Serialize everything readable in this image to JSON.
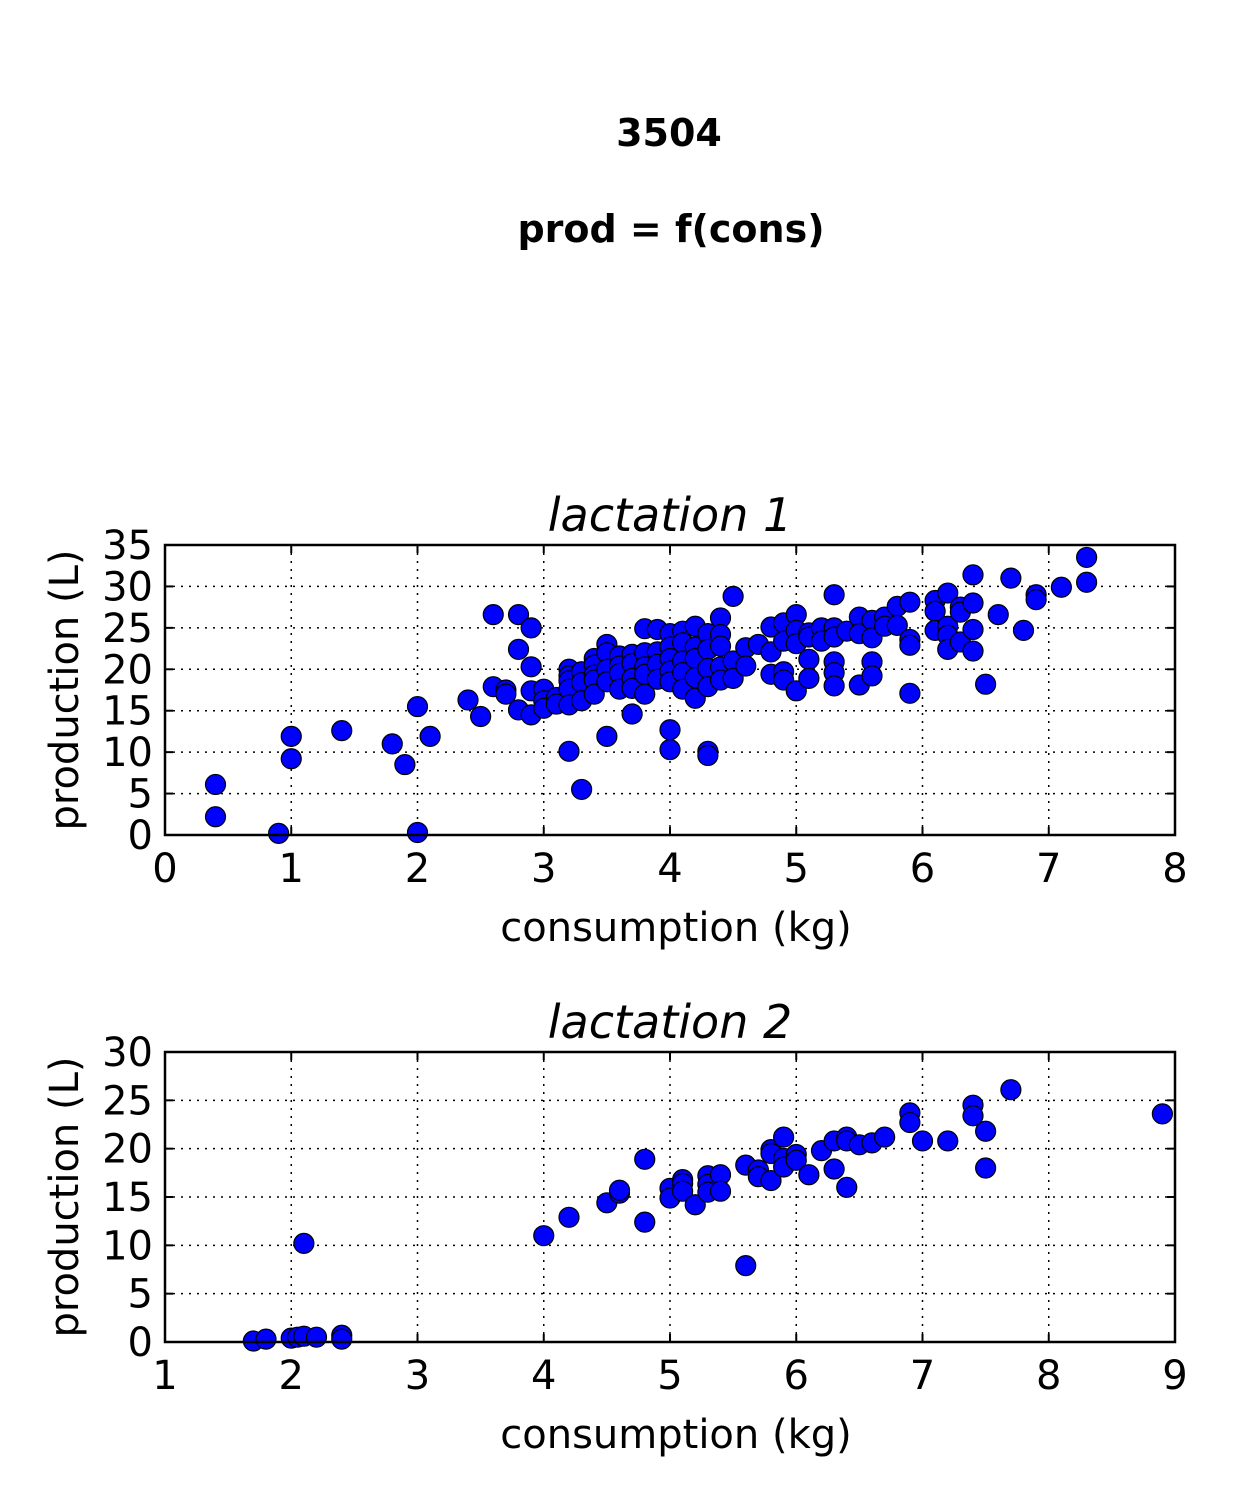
{
  "figure": {
    "suptitle_line1": "3504",
    "suptitle_line2": "prod = f(cons)",
    "marker_color": "#0000ff"
  },
  "chart_data": [
    {
      "type": "scatter",
      "title": "lactation 1",
      "xlabel": "consumption (kg)",
      "ylabel": "production (L)",
      "xlim": [
        0,
        8
      ],
      "ylim": [
        0,
        35
      ],
      "xticks": [
        "0",
        "1",
        "2",
        "3",
        "4",
        "5",
        "6",
        "7",
        "8"
      ],
      "yticks": [
        "0",
        "5",
        "10",
        "15",
        "20",
        "25",
        "30",
        "35"
      ],
      "grid": true,
      "points": [
        [
          0.4,
          6.1
        ],
        [
          0.4,
          2.2
        ],
        [
          0.9,
          0.2
        ],
        [
          1.0,
          11.9
        ],
        [
          1.0,
          9.2
        ],
        [
          1.4,
          12.6
        ],
        [
          1.8,
          11.0
        ],
        [
          1.9,
          8.5
        ],
        [
          2.0,
          15.5
        ],
        [
          2.0,
          0.3
        ],
        [
          2.1,
          11.9
        ],
        [
          2.4,
          16.3
        ],
        [
          2.5,
          14.3
        ],
        [
          2.6,
          26.6
        ],
        [
          2.6,
          17.9
        ],
        [
          2.7,
          17.5
        ],
        [
          2.7,
          17.0
        ],
        [
          2.8,
          26.6
        ],
        [
          2.8,
          22.4
        ],
        [
          2.8,
          15.1
        ],
        [
          2.9,
          25.0
        ],
        [
          2.9,
          20.3
        ],
        [
          2.9,
          17.4
        ],
        [
          2.9,
          14.5
        ],
        [
          3.0,
          17.6
        ],
        [
          3.0,
          16.2
        ],
        [
          3.0,
          15.3
        ],
        [
          3.1,
          16.6
        ],
        [
          3.1,
          15.8
        ],
        [
          3.2,
          20.0
        ],
        [
          3.2,
          19.2
        ],
        [
          3.2,
          18.6
        ],
        [
          3.2,
          17.6
        ],
        [
          3.2,
          15.7
        ],
        [
          3.2,
          10.1
        ],
        [
          3.3,
          19.7
        ],
        [
          3.3,
          18.4
        ],
        [
          3.3,
          16.2
        ],
        [
          3.3,
          5.5
        ],
        [
          3.4,
          21.3
        ],
        [
          3.4,
          20.5
        ],
        [
          3.4,
          19.3
        ],
        [
          3.4,
          18.7
        ],
        [
          3.4,
          17.0
        ],
        [
          3.5,
          23.0
        ],
        [
          3.5,
          22.0
        ],
        [
          3.5,
          20.0
        ],
        [
          3.5,
          18.5
        ],
        [
          3.5,
          11.9
        ],
        [
          3.6,
          21.6
        ],
        [
          3.6,
          20.4
        ],
        [
          3.6,
          19.5
        ],
        [
          3.6,
          17.6
        ],
        [
          3.7,
          21.8
        ],
        [
          3.7,
          20.7
        ],
        [
          3.7,
          18.9
        ],
        [
          3.7,
          17.7
        ],
        [
          3.7,
          14.6
        ],
        [
          3.8,
          24.9
        ],
        [
          3.8,
          22.0
        ],
        [
          3.8,
          20.3
        ],
        [
          3.8,
          19.4
        ],
        [
          3.8,
          17.0
        ],
        [
          3.9,
          24.8
        ],
        [
          3.9,
          22.1
        ],
        [
          3.9,
          20.6
        ],
        [
          3.9,
          18.8
        ],
        [
          4.0,
          24.3
        ],
        [
          4.0,
          22.7
        ],
        [
          4.0,
          21.3
        ],
        [
          4.0,
          19.8
        ],
        [
          4.0,
          18.5
        ],
        [
          4.0,
          12.7
        ],
        [
          4.0,
          10.3
        ],
        [
          4.1,
          24.6
        ],
        [
          4.1,
          23.2
        ],
        [
          4.1,
          21.0
        ],
        [
          4.1,
          19.6
        ],
        [
          4.1,
          17.6
        ],
        [
          4.2,
          25.2
        ],
        [
          4.2,
          22.7
        ],
        [
          4.2,
          21.3
        ],
        [
          4.2,
          19.0
        ],
        [
          4.2,
          16.5
        ],
        [
          4.3,
          24.3
        ],
        [
          4.3,
          22.4
        ],
        [
          4.3,
          20.1
        ],
        [
          4.3,
          17.9
        ],
        [
          4.3,
          10.1
        ],
        [
          4.3,
          9.6
        ],
        [
          4.4,
          26.2
        ],
        [
          4.4,
          24.2
        ],
        [
          4.4,
          22.8
        ],
        [
          4.4,
          20.3
        ],
        [
          4.4,
          18.7
        ],
        [
          4.5,
          28.8
        ],
        [
          4.5,
          21.0
        ],
        [
          4.5,
          18.9
        ],
        [
          4.6,
          22.6
        ],
        [
          4.6,
          20.4
        ],
        [
          4.7,
          23.0
        ],
        [
          4.8,
          25.1
        ],
        [
          4.8,
          22.1
        ],
        [
          4.8,
          19.4
        ],
        [
          4.9,
          25.6
        ],
        [
          4.9,
          23.4
        ],
        [
          4.9,
          19.7
        ],
        [
          4.9,
          18.7
        ],
        [
          5.0,
          26.6
        ],
        [
          5.0,
          24.7
        ],
        [
          5.0,
          23.1
        ],
        [
          5.0,
          17.4
        ],
        [
          5.1,
          24.4
        ],
        [
          5.1,
          23.9
        ],
        [
          5.1,
          21.2
        ],
        [
          5.1,
          18.9
        ],
        [
          5.2,
          25.0
        ],
        [
          5.2,
          23.4
        ],
        [
          5.3,
          29.0
        ],
        [
          5.3,
          25.0
        ],
        [
          5.3,
          23.9
        ],
        [
          5.3,
          20.9
        ],
        [
          5.3,
          19.6
        ],
        [
          5.3,
          18.0
        ],
        [
          5.4,
          24.6
        ],
        [
          5.5,
          26.3
        ],
        [
          5.5,
          24.3
        ],
        [
          5.5,
          18.1
        ],
        [
          5.6,
          25.9
        ],
        [
          5.6,
          23.8
        ],
        [
          5.6,
          20.9
        ],
        [
          5.6,
          19.2
        ],
        [
          5.7,
          26.3
        ],
        [
          5.7,
          25.2
        ],
        [
          5.8,
          27.6
        ],
        [
          5.8,
          25.3
        ],
        [
          5.9,
          28.1
        ],
        [
          5.9,
          23.6
        ],
        [
          5.9,
          22.9
        ],
        [
          5.9,
          17.1
        ],
        [
          6.1,
          28.3
        ],
        [
          6.1,
          27.0
        ],
        [
          6.1,
          24.7
        ],
        [
          6.2,
          29.2
        ],
        [
          6.2,
          25.2
        ],
        [
          6.2,
          24.1
        ],
        [
          6.2,
          22.4
        ],
        [
          6.3,
          27.5
        ],
        [
          6.3,
          26.9
        ],
        [
          6.3,
          23.3
        ],
        [
          6.4,
          31.4
        ],
        [
          6.4,
          28.0
        ],
        [
          6.4,
          24.8
        ],
        [
          6.4,
          22.2
        ],
        [
          6.5,
          18.2
        ],
        [
          6.6,
          26.6
        ],
        [
          6.7,
          31.0
        ],
        [
          6.8,
          24.7
        ],
        [
          6.9,
          29.0
        ],
        [
          6.9,
          28.4
        ],
        [
          7.1,
          29.9
        ],
        [
          7.3,
          33.5
        ],
        [
          7.3,
          30.5
        ]
      ]
    },
    {
      "type": "scatter",
      "title": "lactation 2",
      "xlabel": "consumption (kg)",
      "ylabel": "production (L)",
      "xlim": [
        1,
        9
      ],
      "ylim": [
        0,
        30
      ],
      "xticks": [
        "1",
        "2",
        "3",
        "4",
        "5",
        "6",
        "7",
        "8",
        "9"
      ],
      "yticks": [
        "0",
        "5",
        "10",
        "15",
        "20",
        "25",
        "30"
      ],
      "grid": true,
      "points": [
        [
          1.7,
          0.1
        ],
        [
          1.8,
          0.3
        ],
        [
          2.0,
          0.4
        ],
        [
          2.05,
          0.5
        ],
        [
          2.1,
          0.6
        ],
        [
          2.2,
          0.5
        ],
        [
          2.4,
          0.7
        ],
        [
          2.4,
          0.3
        ],
        [
          2.1,
          10.2
        ],
        [
          4.0,
          11.0
        ],
        [
          4.2,
          12.9
        ],
        [
          4.5,
          14.4
        ],
        [
          4.6,
          15.4
        ],
        [
          4.6,
          15.7
        ],
        [
          4.8,
          18.9
        ],
        [
          4.8,
          12.4
        ],
        [
          5.0,
          15.9
        ],
        [
          5.0,
          14.9
        ],
        [
          5.1,
          16.8
        ],
        [
          5.1,
          16.4
        ],
        [
          5.1,
          15.6
        ],
        [
          5.2,
          14.2
        ],
        [
          5.3,
          17.2
        ],
        [
          5.3,
          16.3
        ],
        [
          5.3,
          15.5
        ],
        [
          5.4,
          17.3
        ],
        [
          5.4,
          15.6
        ],
        [
          5.6,
          18.3
        ],
        [
          5.6,
          7.9
        ],
        [
          5.7,
          17.8
        ],
        [
          5.7,
          17.1
        ],
        [
          5.8,
          19.9
        ],
        [
          5.8,
          19.5
        ],
        [
          5.8,
          16.7
        ],
        [
          5.9,
          21.2
        ],
        [
          5.9,
          19.0
        ],
        [
          5.9,
          18.1
        ],
        [
          6.0,
          19.4
        ],
        [
          6.0,
          18.8
        ],
        [
          6.1,
          17.3
        ],
        [
          6.2,
          19.8
        ],
        [
          6.3,
          20.8
        ],
        [
          6.3,
          17.9
        ],
        [
          6.4,
          21.2
        ],
        [
          6.4,
          20.8
        ],
        [
          6.4,
          16.0
        ],
        [
          6.5,
          20.4
        ],
        [
          6.6,
          20.6
        ],
        [
          6.7,
          21.2
        ],
        [
          6.9,
          23.7
        ],
        [
          6.9,
          22.7
        ],
        [
          7.0,
          20.8
        ],
        [
          7.2,
          20.8
        ],
        [
          7.4,
          24.5
        ],
        [
          7.4,
          23.4
        ],
        [
          7.5,
          21.8
        ],
        [
          7.5,
          18.0
        ],
        [
          7.7,
          26.1
        ],
        [
          8.9,
          23.6
        ]
      ]
    }
  ]
}
